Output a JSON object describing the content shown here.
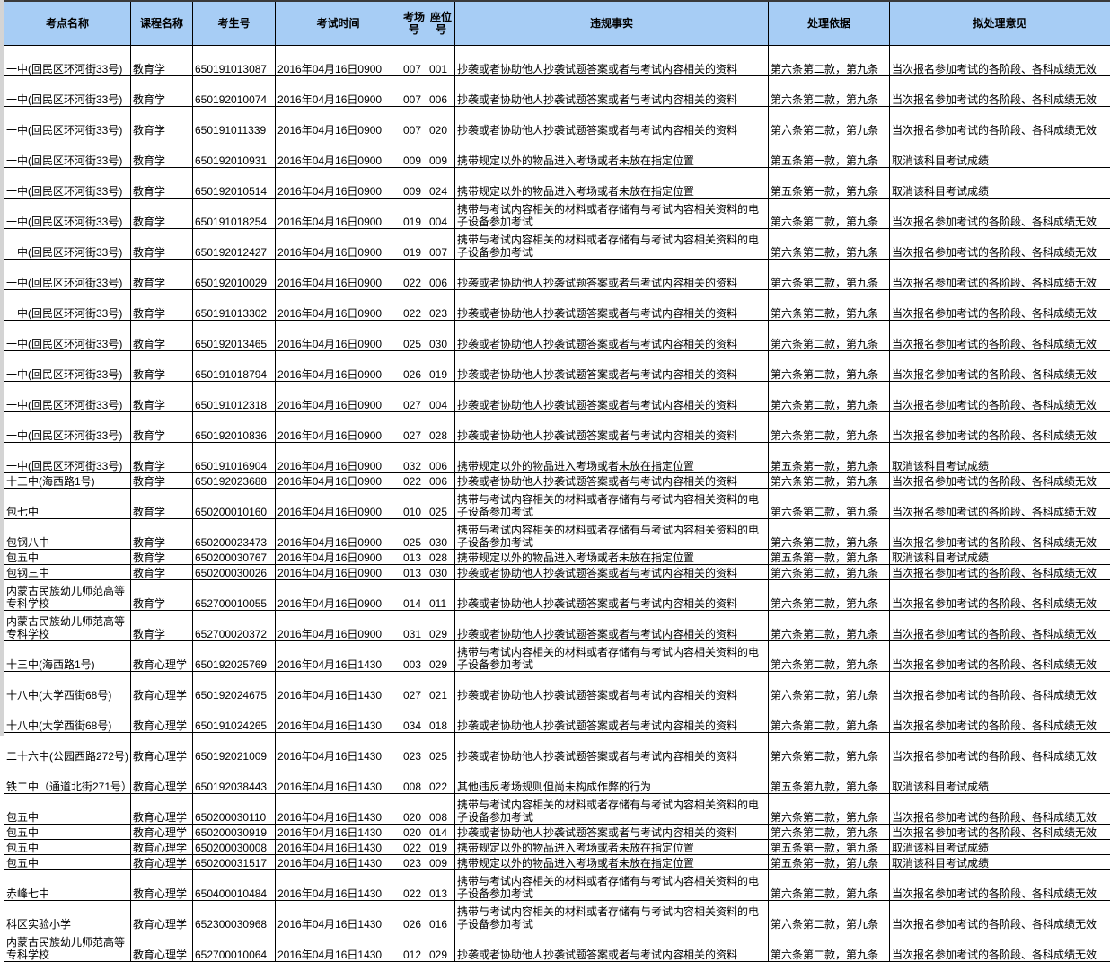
{
  "sheet": {
    "header_color": "#a7cdf5",
    "columns": [
      "考点名称",
      "课程名称",
      "考生号",
      "考试时间",
      "考场号",
      "座位号",
      "违规事实",
      "处理依据",
      "拟处理意见"
    ],
    "rows": [
      {
        "site": "一中(回民区环河街33号)",
        "course": "教育学",
        "id": "650191013087",
        "time": "2016年04月16日0900",
        "room": "007",
        "seat": "001",
        "fact": "抄袭或者协助他人抄袭试题答案或者与考试内容相关的资料",
        "basis": "第六条第二款，第九条",
        "opinion": "当次报名参加考试的各阶段、各科成绩无效"
      },
      {
        "site": "一中(回民区环河街33号)",
        "course": "教育学",
        "id": "650192010074",
        "time": "2016年04月16日0900",
        "room": "007",
        "seat": "006",
        "fact": "抄袭或者协助他人抄袭试题答案或者与考试内容相关的资料",
        "basis": "第六条第二款，第九条",
        "opinion": "当次报名参加考试的各阶段、各科成绩无效"
      },
      {
        "site": "一中(回民区环河街33号)",
        "course": "教育学",
        "id": "650191011339",
        "time": "2016年04月16日0900",
        "room": "007",
        "seat": "020",
        "fact": "抄袭或者协助他人抄袭试题答案或者与考试内容相关的资料",
        "basis": "第六条第二款，第九条",
        "opinion": "当次报名参加考试的各阶段、各科成绩无效"
      },
      {
        "site": "一中(回民区环河街33号)",
        "course": "教育学",
        "id": "650192010931",
        "time": "2016年04月16日0900",
        "room": "009",
        "seat": "009",
        "fact": "携带规定以外的物品进入考场或者未放在指定位置",
        "basis": "第五条第一款，第九条",
        "opinion": "取消该科目考试成绩"
      },
      {
        "site": "一中(回民区环河街33号)",
        "course": "教育学",
        "id": "650192010514",
        "time": "2016年04月16日0900",
        "room": "009",
        "seat": "024",
        "fact": "携带规定以外的物品进入考场或者未放在指定位置",
        "basis": "第五条第一款，第九条",
        "opinion": "取消该科目考试成绩"
      },
      {
        "site": "一中(回民区环河街33号)",
        "course": "教育学",
        "id": "650191018254",
        "time": "2016年04月16日0900",
        "room": "019",
        "seat": "004",
        "fact": "携带与考试内容相关的材料或者存储有与考试内容相关资料的电子设备参加考试",
        "basis": "第六条第二款，第九条",
        "opinion": "当次报名参加考试的各阶段、各科成绩无效"
      },
      {
        "site": "一中(回民区环河街33号)",
        "course": "教育学",
        "id": "650192012427",
        "time": "2016年04月16日0900",
        "room": "019",
        "seat": "007",
        "fact": "携带与考试内容相关的材料或者存储有与考试内容相关资料的电子设备参加考试",
        "basis": "第六条第二款，第九条",
        "opinion": "当次报名参加考试的各阶段、各科成绩无效"
      },
      {
        "site": "一中(回民区环河街33号)",
        "course": "教育学",
        "id": "650192010029",
        "time": "2016年04月16日0900",
        "room": "022",
        "seat": "006",
        "fact": "抄袭或者协助他人抄袭试题答案或者与考试内容相关的资料",
        "basis": "第六条第二款，第九条",
        "opinion": "当次报名参加考试的各阶段、各科成绩无效"
      },
      {
        "site": "一中(回民区环河街33号)",
        "course": "教育学",
        "id": "650191013302",
        "time": "2016年04月16日0900",
        "room": "022",
        "seat": "023",
        "fact": "抄袭或者协助他人抄袭试题答案或者与考试内容相关的资料",
        "basis": "第六条第二款，第九条",
        "opinion": "当次报名参加考试的各阶段、各科成绩无效"
      },
      {
        "site": "一中(回民区环河街33号)",
        "course": "教育学",
        "id": "650192013465",
        "time": "2016年04月16日0900",
        "room": "025",
        "seat": "030",
        "fact": "抄袭或者协助他人抄袭试题答案或者与考试内容相关的资料",
        "basis": "第六条第二款，第九条",
        "opinion": "当次报名参加考试的各阶段、各科成绩无效"
      },
      {
        "site": "一中(回民区环河街33号)",
        "course": "教育学",
        "id": "650191018794",
        "time": "2016年04月16日0900",
        "room": "026",
        "seat": "019",
        "fact": "抄袭或者协助他人抄袭试题答案或者与考试内容相关的资料",
        "basis": "第六条第二款，第九条",
        "opinion": "当次报名参加考试的各阶段、各科成绩无效"
      },
      {
        "site": "一中(回民区环河街33号)",
        "course": "教育学",
        "id": "650191012318",
        "time": "2016年04月16日0900",
        "room": "027",
        "seat": "004",
        "fact": "抄袭或者协助他人抄袭试题答案或者与考试内容相关的资料",
        "basis": "第六条第二款，第九条",
        "opinion": "当次报名参加考试的各阶段、各科成绩无效"
      },
      {
        "site": "一中(回民区环河街33号)",
        "course": "教育学",
        "id": "650192010836",
        "time": "2016年04月16日0900",
        "room": "027",
        "seat": "028",
        "fact": "抄袭或者协助他人抄袭试题答案或者与考试内容相关的资料",
        "basis": "第六条第二款，第九条",
        "opinion": "当次报名参加考试的各阶段、各科成绩无效"
      },
      {
        "site": "一中(回民区环河街33号)",
        "course": "教育学",
        "id": "650191016904",
        "time": "2016年04月16日0900",
        "room": "032",
        "seat": "006",
        "fact": "携带规定以外的物品进入考场或者未放在指定位置",
        "basis": "第五条第一款，第九条",
        "opinion": "取消该科目考试成绩"
      },
      {
        "site": "十三中(海西路1号)",
        "course": "教育学",
        "id": "650192023688",
        "time": "2016年04月16日0900",
        "room": "022",
        "seat": "006",
        "fact": "抄袭或者协助他人抄袭试题答案或者与考试内容相关的资料",
        "basis": "第六条第二款，第九条",
        "opinion": "当次报名参加考试的各阶段、各科成绩无效"
      },
      {
        "site": "包七中",
        "course": "教育学",
        "id": "650200010160",
        "time": "2016年04月16日0900",
        "room": "010",
        "seat": "025",
        "fact": "携带与考试内容相关的材料或者存储有与考试内容相关资料的电子设备参加考试",
        "basis": "第六条第二款，第九条",
        "opinion": "当次报名参加考试的各阶段、各科成绩无效"
      },
      {
        "site": "包钢八中",
        "course": "教育学",
        "id": "650200023473",
        "time": "2016年04月16日0900",
        "room": "025",
        "seat": "030",
        "fact": "携带与考试内容相关的材料或者存储有与考试内容相关资料的电子设备参加考试",
        "basis": "第六条第二款，第九条",
        "opinion": "当次报名参加考试的各阶段、各科成绩无效"
      },
      {
        "site": "包五中",
        "course": "教育学",
        "id": "650200030767",
        "time": "2016年04月16日0900",
        "room": "013",
        "seat": "028",
        "fact": "携带规定以外的物品进入考场或者未放在指定位置",
        "basis": "第五条第一款，第九条",
        "opinion": "取消该科目考试成绩"
      },
      {
        "site": "包钢三中",
        "course": "教育学",
        "id": "650200030026",
        "time": "2016年04月16日0900",
        "room": "013",
        "seat": "030",
        "fact": "抄袭或者协助他人抄袭试题答案或者与考试内容相关的资料",
        "basis": "第六条第二款，第九条",
        "opinion": "当次报名参加考试的各阶段、各科成绩无效"
      },
      {
        "site": "内蒙古民族幼儿师范高等专科学校",
        "course": "教育学",
        "id": "652700010055",
        "time": "2016年04月16日0900",
        "room": "014",
        "seat": "011",
        "fact": "抄袭或者协助他人抄袭试题答案或者与考试内容相关的资料",
        "basis": "第六条第二款，第九条",
        "opinion": "当次报名参加考试的各阶段、各科成绩无效"
      },
      {
        "site": "内蒙古民族幼儿师范高等专科学校",
        "course": "教育学",
        "id": "652700020372",
        "time": "2016年04月16日0900",
        "room": "031",
        "seat": "029",
        "fact": "抄袭或者协助他人抄袭试题答案或者与考试内容相关的资料",
        "basis": "第六条第二款，第九条",
        "opinion": "当次报名参加考试的各阶段、各科成绩无效"
      },
      {
        "site": "十三中(海西路1号)",
        "course": "教育心理学",
        "id": "650192025769",
        "time": "2016年04月16日1430",
        "room": "003",
        "seat": "029",
        "fact": "携带与考试内容相关的材料或者存储有与考试内容相关资料的电子设备参加考试",
        "basis": "第六条第二款，第九条",
        "opinion": "当次报名参加考试的各阶段、各科成绩无效"
      },
      {
        "site": "十八中(大学西街68号)",
        "course": "教育心理学",
        "id": "650192024675",
        "time": "2016年04月16日1430",
        "room": "027",
        "seat": "021",
        "fact": "抄袭或者协助他人抄袭试题答案或者与考试内容相关的资料",
        "basis": "第六条第二款，第九条",
        "opinion": "当次报名参加考试的各阶段、各科成绩无效"
      },
      {
        "site": "十八中(大学西街68号)",
        "course": "教育心理学",
        "id": "650191024265",
        "time": "2016年04月16日1430",
        "room": "034",
        "seat": "018",
        "fact": "抄袭或者协助他人抄袭试题答案或者与考试内容相关的资料",
        "basis": "第六条第二款，第九条",
        "opinion": "当次报名参加考试的各阶段、各科成绩无效"
      },
      {
        "site": "二十六中(公园西路272号)",
        "course": "教育心理学",
        "id": "650192021009",
        "time": "2016年04月16日1430",
        "room": "023",
        "seat": "025",
        "fact": "抄袭或者协助他人抄袭试题答案或者与考试内容相关的资料",
        "basis": "第六条第二款，第九条",
        "opinion": "当次报名参加考试的各阶段、各科成绩无效"
      },
      {
        "site": "铁二中（通道北街271号）",
        "course": "教育心理学",
        "id": "650192038443",
        "time": "2016年04月16日1430",
        "room": "008",
        "seat": "022",
        "fact": "其他违反考场规则但尚未构成作弊的行为",
        "basis": "第五条第九款，第九条",
        "opinion": "取消该科目考试成绩"
      },
      {
        "site": "包五中",
        "course": "教育心理学",
        "id": "650200030110",
        "time": "2016年04月16日1430",
        "room": "020",
        "seat": "008",
        "fact": "携带与考试内容相关的材料或者存储有与考试内容相关资料的电子设备参加考试",
        "basis": "第六条第二款，第九条",
        "opinion": "当次报名参加考试的各阶段、各科成绩无效"
      },
      {
        "site": "包五中",
        "course": "教育心理学",
        "id": "650200030919",
        "time": "2016年04月16日1430",
        "room": "020",
        "seat": "014",
        "fact": "抄袭或者协助他人抄袭试题答案或者与考试内容相关的资料",
        "basis": "第六条第二款，第九条",
        "opinion": "当次报名参加考试的各阶段、各科成绩无效"
      },
      {
        "site": "包五中",
        "course": "教育心理学",
        "id": "650200030008",
        "time": "2016年04月16日1430",
        "room": "022",
        "seat": "019",
        "fact": "携带规定以外的物品进入考场或者未放在指定位置",
        "basis": "第五条第一款，第九条",
        "opinion": "取消该科目考试成绩"
      },
      {
        "site": "包五中",
        "course": "教育心理学",
        "id": "650200031517",
        "time": "2016年04月16日1430",
        "room": "023",
        "seat": "009",
        "fact": "携带规定以外的物品进入考场或者未放在指定位置",
        "basis": "第五条第一款，第九条",
        "opinion": "取消该科目考试成绩"
      },
      {
        "site": "赤峰七中",
        "course": "教育心理学",
        "id": "650400010484",
        "time": "2016年04月16日1430",
        "room": "022",
        "seat": "013",
        "fact": "携带与考试内容相关的材料或者存储有与考试内容相关资料的电子设备参加考试",
        "basis": "第六条第二款，第九条",
        "opinion": "当次报名参加考试的各阶段、各科成绩无效"
      },
      {
        "site": "科区实验小学",
        "course": "教育心理学",
        "id": "652300030968",
        "time": "2016年04月16日1430",
        "room": "026",
        "seat": "016",
        "fact": "携带与考试内容相关的材料或者存储有与考试内容相关资料的电子设备参加考试",
        "basis": "第六条第二款，第九条",
        "opinion": "当次报名参加考试的各阶段、各科成绩无效"
      },
      {
        "site": "内蒙古民族幼儿师范高等专科学校",
        "course": "教育心理学",
        "id": "652700010064",
        "time": "2016年04月16日1430",
        "room": "012",
        "seat": "029",
        "fact": "抄袭或者协助他人抄袭试题答案或者与考试内容相关的资料",
        "basis": "第六条第二款，第九条",
        "opinion": "当次报名参加考试的各阶段、各科成绩无效"
      }
    ]
  }
}
